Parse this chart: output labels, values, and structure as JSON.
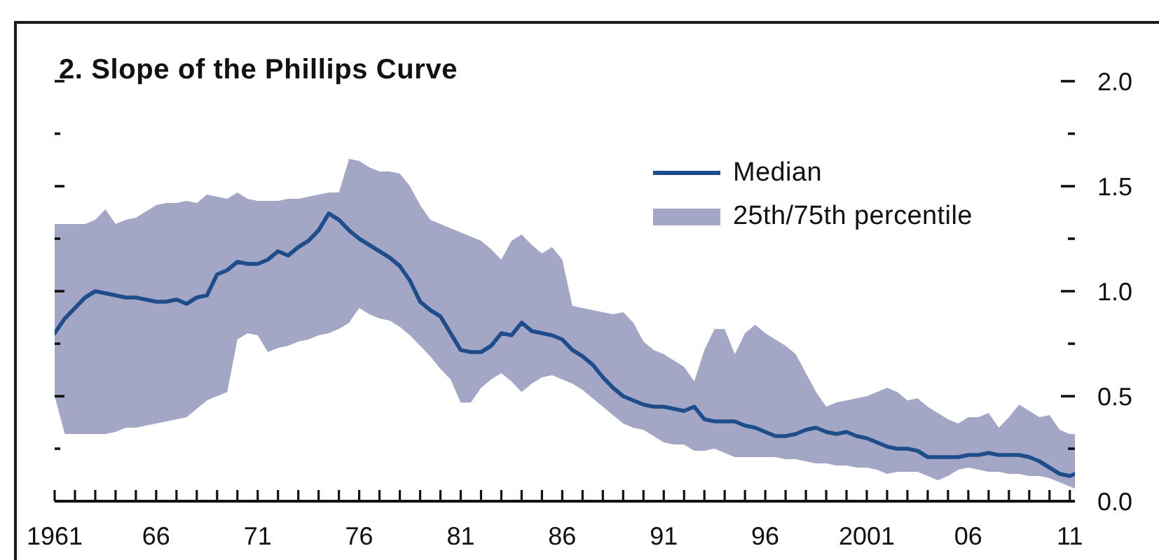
{
  "chart_data": {
    "type": "line",
    "title": "2. Slope of the Phillips Curve",
    "x": [
      1961,
      1961.5,
      1962,
      1962.5,
      1963,
      1963.5,
      1964,
      1964.5,
      1965,
      1965.5,
      1966,
      1966.5,
      1967,
      1967.5,
      1968,
      1968.5,
      1969,
      1969.5,
      1970,
      1970.5,
      1971,
      1971.5,
      1972,
      1972.5,
      1973,
      1973.5,
      1974,
      1974.5,
      1975,
      1975.5,
      1976,
      1976.5,
      1977,
      1977.5,
      1978,
      1978.5,
      1979,
      1979.5,
      1980,
      1980.5,
      1981,
      1981.5,
      1982,
      1982.5,
      1983,
      1983.5,
      1984,
      1984.5,
      1985,
      1985.5,
      1986,
      1986.5,
      1987,
      1987.5,
      1988,
      1988.5,
      1989,
      1989.5,
      1990,
      1990.5,
      1991,
      1991.5,
      1992,
      1992.5,
      1993,
      1993.5,
      1994,
      1994.5,
      1995,
      1995.5,
      1996,
      1996.5,
      1997,
      1997.5,
      1998,
      1998.5,
      1999,
      1999.5,
      2000,
      2000.5,
      2001,
      2001.5,
      2002,
      2002.5,
      2003,
      2003.5,
      2004,
      2004.5,
      2005,
      2005.5,
      2006,
      2006.5,
      2007,
      2007.5,
      2008,
      2008.5,
      2009,
      2009.5,
      2010,
      2010.5,
      2011,
      2011.25
    ],
    "xlim": [
      1961,
      2011.25
    ],
    "xticks": [
      1961,
      {
        "value": 1962,
        "label": null
      },
      {
        "value": 1963,
        "label": null
      },
      {
        "value": 1964,
        "label": null
      },
      {
        "value": 1965,
        "label": null
      },
      {
        "value": 1966,
        "label": "66"
      },
      {
        "value": 1967,
        "label": null
      },
      {
        "value": 1968,
        "label": null
      },
      {
        "value": 1969,
        "label": null
      },
      {
        "value": 1970,
        "label": null
      },
      {
        "value": 1971,
        "label": "71"
      },
      {
        "value": 1972,
        "label": null
      },
      {
        "value": 1973,
        "label": null
      },
      {
        "value": 1974,
        "label": null
      },
      {
        "value": 1975,
        "label": null
      },
      {
        "value": 1976,
        "label": "76"
      },
      {
        "value": 1977,
        "label": null
      },
      {
        "value": 1978,
        "label": null
      },
      {
        "value": 1979,
        "label": null
      },
      {
        "value": 1980,
        "label": null
      },
      {
        "value": 1981,
        "label": "81"
      },
      {
        "value": 1982,
        "label": null
      },
      {
        "value": 1983,
        "label": null
      },
      {
        "value": 1984,
        "label": null
      },
      {
        "value": 1985,
        "label": null
      },
      {
        "value": 1986,
        "label": "86"
      },
      {
        "value": 1987,
        "label": null
      },
      {
        "value": 1988,
        "label": null
      },
      {
        "value": 1989,
        "label": null
      },
      {
        "value": 1990,
        "label": null
      },
      {
        "value": 1991,
        "label": "91"
      },
      {
        "value": 1992,
        "label": null
      },
      {
        "value": 1993,
        "label": null
      },
      {
        "value": 1994,
        "label": null
      },
      {
        "value": 1995,
        "label": null
      },
      {
        "value": 1996,
        "label": "96"
      },
      {
        "value": 1997,
        "label": null
      },
      {
        "value": 1998,
        "label": null
      },
      {
        "value": 1999,
        "label": null
      },
      {
        "value": 2000,
        "label": null
      },
      2001,
      {
        "value": 2002,
        "label": null
      },
      {
        "value": 2003,
        "label": null
      },
      {
        "value": 2004,
        "label": null
      },
      {
        "value": 2005,
        "label": null
      },
      {
        "value": 2006,
        "label": "06"
      },
      {
        "value": 2007,
        "label": null
      },
      {
        "value": 2008,
        "label": null
      },
      {
        "value": 2009,
        "label": null
      },
      {
        "value": 2010,
        "label": null
      },
      {
        "value": 2011,
        "label": "11"
      }
    ],
    "ylim": [
      0,
      2
    ],
    "yticks": [
      {
        "value": 0,
        "label": "0.0"
      },
      {
        "value": 0.25,
        "label": null
      },
      {
        "value": 0.5,
        "label": "0.5"
      },
      {
        "value": 0.75,
        "label": null
      },
      {
        "value": 1,
        "label": "1.0"
      },
      {
        "value": 1.25,
        "label": null
      },
      {
        "value": 1.5,
        "label": "1.5"
      },
      {
        "value": 1.75,
        "label": null
      },
      {
        "value": 2,
        "label": "2.0"
      }
    ],
    "legend": "top right",
    "series": [
      {
        "name": "Median",
        "type": "line",
        "color": "#1e4d8b",
        "values": [
          0.8,
          0.87,
          0.92,
          0.97,
          1.0,
          0.99,
          0.98,
          0.97,
          0.97,
          0.96,
          0.95,
          0.95,
          0.96,
          0.94,
          0.97,
          0.98,
          1.08,
          1.1,
          1.14,
          1.13,
          1.13,
          1.15,
          1.19,
          1.17,
          1.21,
          1.24,
          1.29,
          1.37,
          1.34,
          1.29,
          1.25,
          1.22,
          1.19,
          1.16,
          1.12,
          1.05,
          0.95,
          0.91,
          0.88,
          0.8,
          0.72,
          0.71,
          0.71,
          0.74,
          0.8,
          0.79,
          0.85,
          0.81,
          0.8,
          0.79,
          0.77,
          0.72,
          0.69,
          0.65,
          0.59,
          0.54,
          0.5,
          0.48,
          0.46,
          0.45,
          0.45,
          0.44,
          0.43,
          0.45,
          0.39,
          0.38,
          0.38,
          0.38,
          0.36,
          0.35,
          0.33,
          0.31,
          0.31,
          0.32,
          0.34,
          0.35,
          0.33,
          0.32,
          0.33,
          0.31,
          0.3,
          0.28,
          0.26,
          0.25,
          0.25,
          0.24,
          0.21,
          0.21,
          0.21,
          0.21,
          0.22,
          0.22,
          0.23,
          0.22,
          0.22,
          0.22,
          0.21,
          0.19,
          0.16,
          0.13,
          0.12,
          0.13
        ]
      },
      {
        "name": "25th/75th percentile",
        "type": "area",
        "color": "#a3a6c4",
        "values": [
          null,
          null,
          null,
          null,
          null,
          null,
          null,
          null,
          null,
          null,
          null,
          null,
          null,
          null,
          null,
          null,
          null,
          null,
          null,
          null,
          null,
          null,
          null,
          null,
          null,
          null,
          null,
          null,
          null,
          null,
          null,
          null,
          null,
          null,
          null,
          null,
          null,
          null,
          null,
          null,
          null,
          null,
          null,
          null,
          null,
          null,
          null,
          null,
          null,
          null,
          null,
          null,
          null,
          null,
          null,
          null,
          null,
          null,
          null,
          null,
          null,
          null,
          null,
          null,
          null,
          null,
          null,
          null,
          null,
          null,
          null,
          null,
          null,
          null,
          null,
          null,
          null,
          null,
          null,
          null,
          null,
          null,
          null,
          null,
          null,
          null,
          null,
          null,
          null,
          null,
          null,
          null,
          null,
          null,
          null,
          null,
          null,
          null,
          null,
          null,
          null,
          null
        ],
        "lower": [
          0.5,
          0.32,
          0.32,
          0.32,
          0.32,
          0.32,
          0.33,
          0.35,
          0.35,
          0.36,
          0.37,
          0.38,
          0.39,
          0.4,
          0.44,
          0.48,
          0.5,
          0.52,
          0.77,
          0.8,
          0.79,
          0.71,
          0.73,
          0.74,
          0.76,
          0.77,
          0.79,
          0.8,
          0.82,
          0.85,
          0.92,
          0.89,
          0.87,
          0.86,
          0.83,
          0.79,
          0.74,
          0.69,
          0.63,
          0.58,
          0.47,
          0.47,
          0.54,
          0.58,
          0.61,
          0.57,
          0.52,
          0.56,
          0.59,
          0.6,
          0.58,
          0.56,
          0.53,
          0.49,
          0.45,
          0.41,
          0.37,
          0.35,
          0.34,
          0.31,
          0.28,
          0.27,
          0.27,
          0.24,
          0.24,
          0.25,
          0.23,
          0.21,
          0.21,
          0.21,
          0.21,
          0.21,
          0.2,
          0.2,
          0.19,
          0.18,
          0.18,
          0.17,
          0.17,
          0.16,
          0.16,
          0.15,
          0.13,
          0.14,
          0.14,
          0.14,
          0.12,
          0.1,
          0.12,
          0.15,
          0.16,
          0.15,
          0.14,
          0.14,
          0.13,
          0.13,
          0.12,
          0.12,
          0.11,
          0.09,
          0.07,
          0.06
        ],
        "upper": [
          1.32,
          1.32,
          1.32,
          1.32,
          1.34,
          1.39,
          1.32,
          1.34,
          1.35,
          1.38,
          1.41,
          1.42,
          1.42,
          1.43,
          1.42,
          1.46,
          1.45,
          1.44,
          1.47,
          1.44,
          1.43,
          1.43,
          1.43,
          1.44,
          1.44,
          1.45,
          1.46,
          1.47,
          1.47,
          1.63,
          1.62,
          1.59,
          1.57,
          1.57,
          1.56,
          1.5,
          1.41,
          1.34,
          1.32,
          1.3,
          1.28,
          1.26,
          1.24,
          1.2,
          1.15,
          1.24,
          1.27,
          1.22,
          1.18,
          1.21,
          1.15,
          0.93,
          0.92,
          0.91,
          0.9,
          0.89,
          0.9,
          0.85,
          0.76,
          0.72,
          0.7,
          0.67,
          0.64,
          0.57,
          0.72,
          0.82,
          0.82,
          0.7,
          0.8,
          0.84,
          0.8,
          0.77,
          0.74,
          0.7,
          0.61,
          0.52,
          0.45,
          0.47,
          0.48,
          0.49,
          0.5,
          0.52,
          0.54,
          0.52,
          0.48,
          0.49,
          0.45,
          0.42,
          0.39,
          0.37,
          0.4,
          0.4,
          0.42,
          0.35,
          0.4,
          0.46,
          0.43,
          0.4,
          0.41,
          0.34,
          0.32,
          0.32
        ]
      }
    ]
  }
}
